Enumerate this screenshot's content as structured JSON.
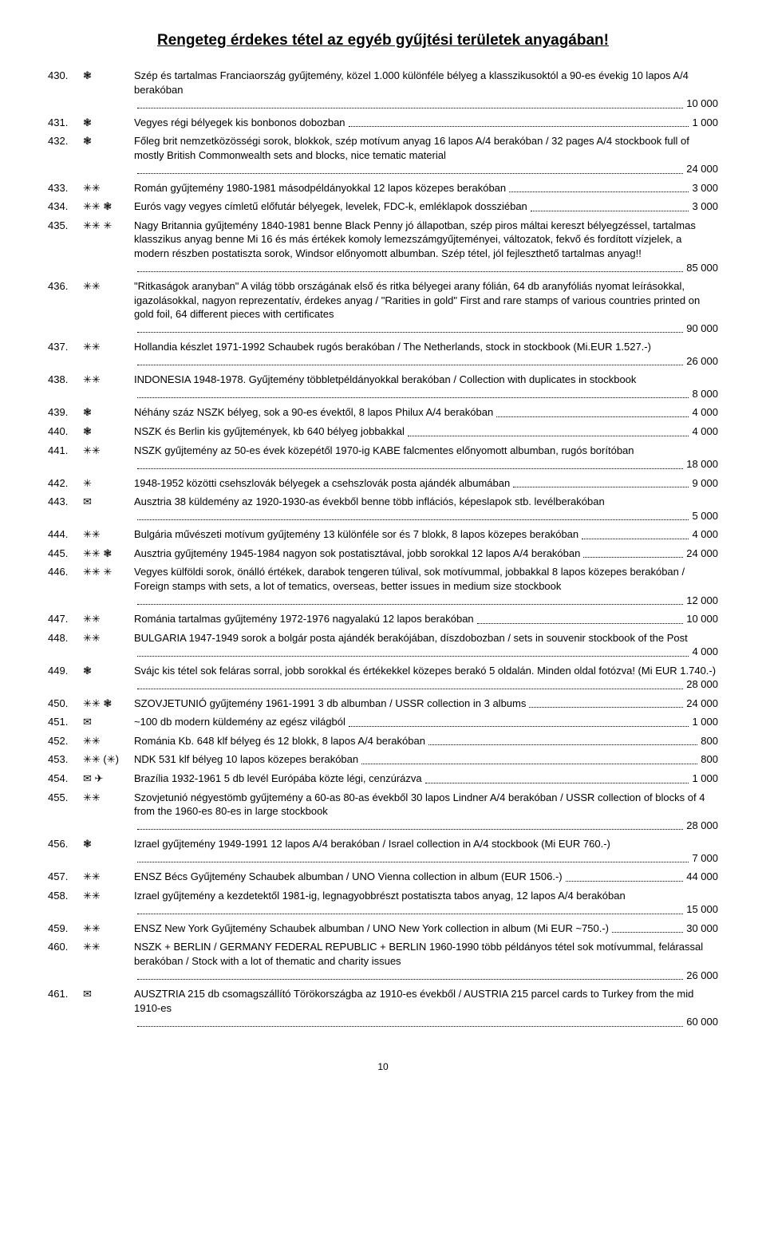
{
  "title": "Rengeteg érdekes tétel az egyéb gyűjtési területek anyagában!",
  "page_number": "10",
  "items": [
    {
      "num": "430.",
      "sym": "❃",
      "text": "Szép és tartalmas Franciaország gyűjtemény, közel 1.000 különféle bélyeg a klasszikusoktól a 90-es évekig 10 lapos A/4 berakóban",
      "price": "10 000"
    },
    {
      "num": "431.",
      "sym": "❃",
      "text": "Vegyes régi bélyegek kis bonbonos dobozban",
      "price": "1 000"
    },
    {
      "num": "432.",
      "sym": "❃",
      "text": "Főleg brit nemzetközösségi sorok, blokkok, szép motívum anyag 16 lapos A/4 berakóban / 32 pages A/4 stockbook full of mostly British Commonwealth sets and blocks, nice tematic material",
      "price": "24 000"
    },
    {
      "num": "433.",
      "sym": "✳✳",
      "text": "Román gyűjtemény 1980-1981 másodpéldányokkal 12 lapos közepes berakóban",
      "price": "3 000"
    },
    {
      "num": "434.",
      "sym": "✳✳ ❃",
      "text": "Eurós vagy vegyes címletű előfutár bélyegek, levelek, FDC-k, emléklapok dossziéban",
      "price": "3 000"
    },
    {
      "num": "435.",
      "sym": "✳✳ ✳",
      "text": "Nagy Britannia gyűjtemény 1840-1981 benne Black Penny jó állapotban, szép piros máltai kereszt bélyegzéssel, tartalmas klasszikus anyag benne Mi 16 és más értékek komoly lemezszámgyűjteményei, változatok, fekvő és fordított vízjelek, a modern részben postatiszta sorok, Windsor előnyomott albumban. Szép tétel, jól fejleszthető tartalmas anyag!!",
      "price": "85 000"
    },
    {
      "num": "436.",
      "sym": "✳✳",
      "text": "\"Ritkaságok aranyban\" A világ több országának első és ritka bélyegei arany fólián, 64 db aranyfóliás nyomat leírásokkal, igazolásokkal, nagyon reprezentatív, érdekes anyag / \"Rarities in gold\" First and rare stamps of various countries printed on gold foil, 64 different pieces with certificates",
      "price": "90 000"
    },
    {
      "num": "437.",
      "sym": "✳✳",
      "text": "Hollandia készlet 1971-1992 Schaubek rugós berakóban / The Netherlands, stock in stockbook (Mi.EUR 1.527.-)",
      "price": "26 000"
    },
    {
      "num": "438.",
      "sym": "✳✳",
      "text": "INDONESIA 1948-1978. Gyűjtemény többletpéldányokkal berakóban / Collection with duplicates in stockbook",
      "price": "8 000"
    },
    {
      "num": "439.",
      "sym": "❃",
      "text": "Néhány száz NSZK bélyeg, sok a 90-es évektől, 8 lapos Philux A/4 berakóban",
      "price": "4 000"
    },
    {
      "num": "440.",
      "sym": "❃",
      "text": "NSZK és Berlin kis gyűjtemények, kb 640 bélyeg jobbakkal",
      "price": "4 000"
    },
    {
      "num": "441.",
      "sym": "✳✳",
      "text": "NSZK gyűjtemény az 50-es évek közepétől 1970-ig KABE falcmentes előnyomott albumban, rugós borítóban",
      "price": "18 000"
    },
    {
      "num": "442.",
      "sym": "✳",
      "text": "1948-1952 közötti csehszlovák bélyegek a csehszlovák posta ajándék albumában",
      "price": "9 000"
    },
    {
      "num": "443.",
      "sym": "✉",
      "text": "Ausztria 38 küldemény az 1920-1930-as évekből benne több inflációs, képeslapok stb. levélberakóban",
      "price": "5 000"
    },
    {
      "num": "444.",
      "sym": "✳✳",
      "text": "Bulgária művészeti motívum gyűjtemény 13 különféle sor és 7 blokk, 8 lapos közepes berakóban",
      "price": "4 000"
    },
    {
      "num": "445.",
      "sym": "✳✳ ❃",
      "text": "Ausztria gyűjtemény 1945-1984 nagyon sok postatisztával, jobb sorokkal 12 lapos A/4 berakóban",
      "price": "24 000"
    },
    {
      "num": "446.",
      "sym": "✳✳ ✳",
      "text": "Vegyes külföldi sorok, önálló értékek, darabok tengeren túlival, sok motívummal, jobbakkal 8 lapos közepes berakóban / Foreign stamps with sets, a lot of tematics, overseas, better issues in medium size stockbook",
      "price": "12 000"
    },
    {
      "num": "447.",
      "sym": "✳✳",
      "text": "Románia tartalmas gyűjtemény 1972-1976 nagyalakú 12 lapos berakóban",
      "price": "10 000"
    },
    {
      "num": "448.",
      "sym": "✳✳",
      "text": "BULGARIA 1947-1949 sorok a bolgár posta ajándék berakójában, díszdobozban / sets in souvenir stockbook of the Post",
      "price": "4 000"
    },
    {
      "num": "449.",
      "sym": "❃",
      "text": "Svájc kis tétel sok feláras sorral, jobb sorokkal és értékekkel közepes berakó 5 oldalán. Minden oldal fotózva! (Mi EUR 1.740.-)",
      "price": "28 000"
    },
    {
      "num": "450.",
      "sym": "✳✳ ❃",
      "text": "SZOVJETUNIÓ gyűjtemény 1961-1991 3 db albumban / USSR collection in 3 albums",
      "price": "24 000"
    },
    {
      "num": "451.",
      "sym": "✉",
      "text": "~100 db modern küldemény az egész világból",
      "price": "1 000"
    },
    {
      "num": "452.",
      "sym": "✳✳",
      "text": "Románia Kb. 648 klf bélyeg és 12 blokk, 8 lapos A/4 berakóban",
      "price": "800"
    },
    {
      "num": "453.",
      "sym": "✳✳ (✳)",
      "text": "NDK 531 klf bélyeg 10 lapos közepes berakóban",
      "price": "800"
    },
    {
      "num": "454.",
      "sym": "✉ ✈",
      "text": "Brazília 1932-1961 5 db levél Európába közte légi, cenzúrázva",
      "price": "1 000"
    },
    {
      "num": "455.",
      "sym": "✳✳",
      "text": "Szovjetunió négyestömb gyűjtemény a 60-as 80-as évekből 30 lapos Lindner A/4 berakóban / USSR collection of blocks of 4 from the 1960-es 80-es in large stockbook",
      "price": "28 000"
    },
    {
      "num": "456.",
      "sym": "❃",
      "text": "Izrael gyűjtemény 1949-1991 12 lapos A/4 berakóban / Israel collection in A/4 stockbook (Mi EUR 760.-)",
      "price": "7 000"
    },
    {
      "num": "457.",
      "sym": "✳✳",
      "text": "ENSZ Bécs Gyűjtemény Schaubek albumban / UNO Vienna collection in album (EUR 1506.-)",
      "price": "44 000"
    },
    {
      "num": "458.",
      "sym": "✳✳",
      "text": "Izrael gyűjtemény a kezdetektől 1981-ig, legnagyobbrészt postatiszta tabos anyag, 12 lapos A/4 berakóban",
      "price": "15 000"
    },
    {
      "num": "459.",
      "sym": "✳✳",
      "text": "ENSZ New York Gyűjtemény Schaubek albumban / UNO New York collection in album (Mi EUR ~750.-)",
      "price": "30 000"
    },
    {
      "num": "460.",
      "sym": "✳✳",
      "text": "NSZK + BERLIN / GERMANY FEDERAL REPUBLIC + BERLIN 1960-1990 több példányos tétel sok motívummal, felárassal berakóban / Stock with a lot of thematic and charity issues",
      "price": "26 000"
    },
    {
      "num": "461.",
      "sym": "✉",
      "text": "AUSZTRIA 215 db csomagszállító Törökországba az 1910-es évekből / AUSTRIA 215 parcel cards to Turkey from the mid 1910-es",
      "price": "60 000"
    }
  ]
}
